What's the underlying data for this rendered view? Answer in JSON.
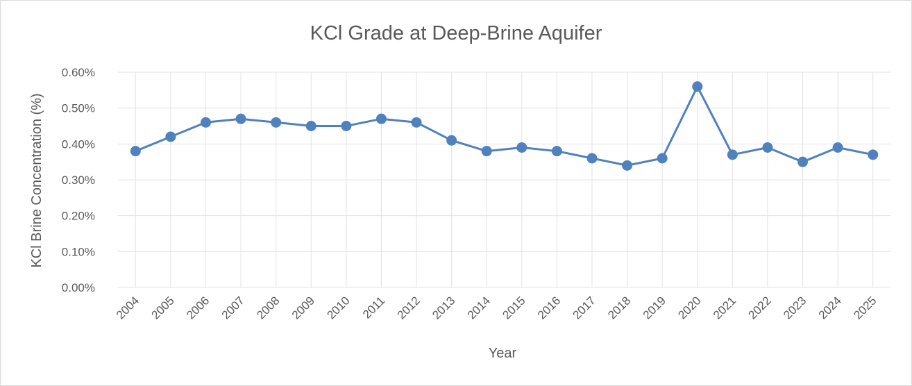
{
  "chart_data": {
    "type": "line",
    "title": "KCl Grade at Deep-Brine Aquifer",
    "xlabel": "Year",
    "ylabel": "KCl Brine Concentration (%)",
    "categories": [
      "2004",
      "2005",
      "2006",
      "2007",
      "2008",
      "2009",
      "2010",
      "2011",
      "2012",
      "2013",
      "2014",
      "2015",
      "2016",
      "2017",
      "2018",
      "2019",
      "2020",
      "2021",
      "2022",
      "2023",
      "2024",
      "2025"
    ],
    "y_ticks": [
      "0.00%",
      "0.10%",
      "0.20%",
      "0.30%",
      "0.40%",
      "0.50%",
      "0.60%"
    ],
    "ylim": [
      0,
      0.6
    ],
    "grid": true,
    "legend": "none",
    "series": [
      {
        "color": "#4f81bd",
        "values": [
          0.38,
          0.42,
          0.46,
          0.47,
          0.46,
          0.45,
          0.45,
          0.47,
          0.46,
          0.41,
          0.38,
          0.39,
          0.38,
          0.36,
          0.34,
          0.36,
          0.56,
          0.37,
          0.39,
          0.35,
          0.39,
          0.37
        ]
      }
    ]
  }
}
